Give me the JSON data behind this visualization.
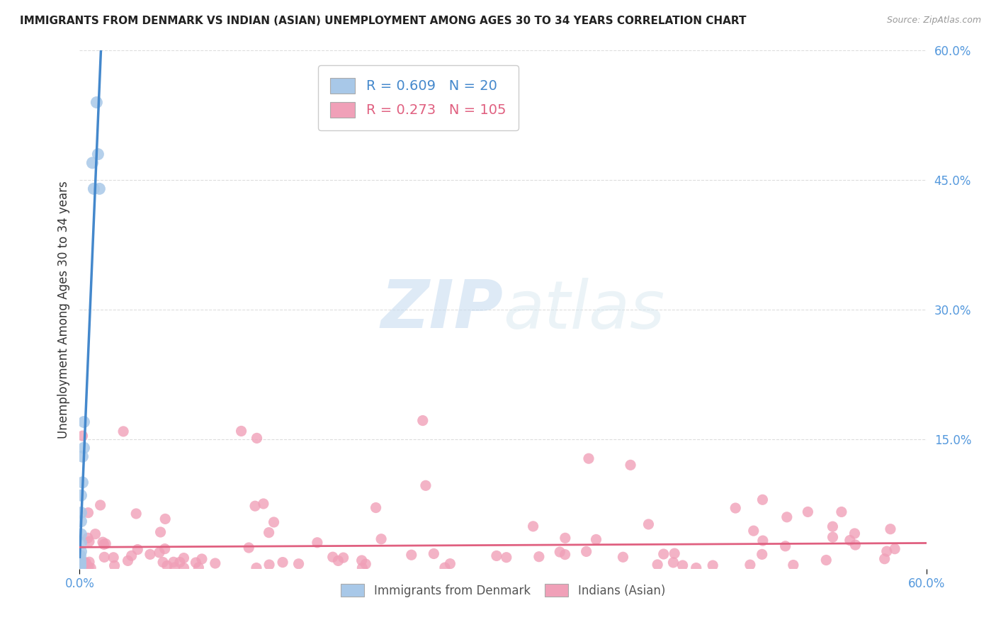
{
  "title": "IMMIGRANTS FROM DENMARK VS INDIAN (ASIAN) UNEMPLOYMENT AMONG AGES 30 TO 34 YEARS CORRELATION CHART",
  "source": "Source: ZipAtlas.com",
  "ylabel": "Unemployment Among Ages 30 to 34 years",
  "xlim": [
    0.0,
    0.6
  ],
  "ylim": [
    0.0,
    0.6
  ],
  "xlim_display_min_label": "0.0%",
  "xlim_display_max_label": "60.0%",
  "ytick_labels_right": [
    "60.0%",
    "45.0%",
    "30.0%",
    "15.0%"
  ],
  "ytick_vals_right": [
    0.6,
    0.45,
    0.3,
    0.15
  ],
  "blue_R": 0.609,
  "blue_N": 20,
  "pink_R": 0.273,
  "pink_N": 105,
  "blue_color": "#A8C8E8",
  "pink_color": "#F0A0B8",
  "blue_line_color": "#4488CC",
  "pink_line_color": "#E06080",
  "legend_label_blue": "Immigrants from Denmark",
  "legend_label_pink": "Indians (Asian)",
  "watermark_zip": "ZIP",
  "watermark_atlas": "atlas",
  "background_color": "#FFFFFF",
  "grid_color": "#DDDDDD",
  "blue_x": [
    0.012,
    0.013,
    0.014,
    0.009,
    0.01,
    0.003,
    0.003,
    0.002,
    0.002,
    0.001,
    0.001,
    0.001,
    0.001,
    0.001,
    0.001,
    0.0005,
    0.0005,
    0.0005,
    0.0005,
    0.0005
  ],
  "blue_y": [
    0.54,
    0.48,
    0.44,
    0.47,
    0.44,
    0.17,
    0.14,
    0.13,
    0.1,
    0.085,
    0.065,
    0.055,
    0.04,
    0.03,
    0.02,
    0.015,
    0.01,
    0.007,
    0.004,
    0.002
  ]
}
